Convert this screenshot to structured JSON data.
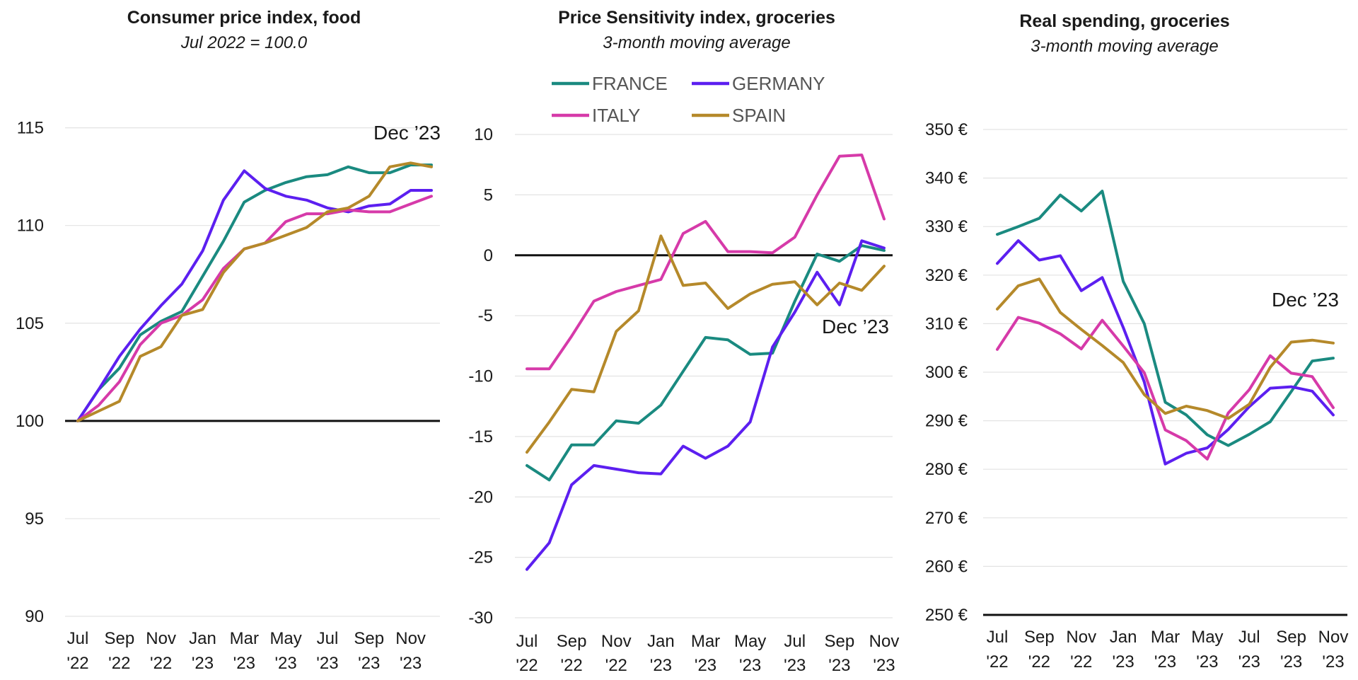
{
  "chart_data": [
    {
      "type": "line",
      "title": "Consumer price index, food",
      "subtitle": "Jul 2022 = 100.0",
      "annotation": "Dec ’23",
      "x_month_labels": [
        "Jul",
        "Sep",
        "Nov",
        "Jan",
        "Mar",
        "May",
        "Jul",
        "Sep",
        "Nov"
      ],
      "x_year_labels": [
        "'22",
        "'22",
        "'22",
        "'23",
        "'23",
        "'23",
        "'23",
        "'23",
        "'23"
      ],
      "y_tick_labels": [
        "90",
        "95",
        "100",
        "105",
        "110",
        "115"
      ],
      "y_ticks": [
        90,
        95,
        100,
        105,
        110,
        115
      ],
      "ylim": [
        90,
        116
      ],
      "baseline": 100,
      "grid": true,
      "series": [
        {
          "name": "FRANCE",
          "color": "#1a8a80",
          "values": [
            100,
            101.6,
            102.7,
            104.4,
            105.1,
            105.6,
            107.4,
            109.2,
            111.2,
            111.8,
            112.2,
            112.5,
            112.6,
            113.0,
            112.7,
            112.7,
            113.1,
            113.1
          ]
        },
        {
          "name": "GERMANY",
          "color": "#5c1ff0",
          "values": [
            100,
            101.6,
            103.3,
            104.7,
            105.9,
            107.0,
            108.7,
            111.3,
            112.8,
            111.9,
            111.5,
            111.3,
            110.9,
            110.7,
            111.0,
            111.1,
            111.8,
            111.8
          ]
        },
        {
          "name": "ITALY",
          "color": "#d63aa9",
          "values": [
            100,
            100.8,
            102.0,
            103.9,
            105.0,
            105.4,
            106.2,
            107.8,
            108.8,
            109.1,
            110.2,
            110.6,
            110.6,
            110.8,
            110.7,
            110.7,
            111.1,
            111.5
          ]
        },
        {
          "name": "SPAIN",
          "color": "#b5892a",
          "values": [
            100,
            100.5,
            101.0,
            103.3,
            103.8,
            105.4,
            105.7,
            107.6,
            108.8,
            109.1,
            109.5,
            109.9,
            110.7,
            110.9,
            111.5,
            113.0,
            113.2,
            113.0
          ]
        }
      ]
    },
    {
      "type": "line",
      "title": "Price Sensitivity index, groceries",
      "subtitle": "3-month moving average",
      "annotation": "Dec ’23",
      "legend": "top",
      "x_month_labels": [
        "Jul",
        "Sep",
        "Nov",
        "Jan",
        "Mar",
        "May",
        "Jul",
        "Sep",
        "Nov"
      ],
      "x_year_labels": [
        "'22",
        "'22",
        "'22",
        "'23",
        "'23",
        "'23",
        "'23",
        "'23",
        "'23"
      ],
      "y_tick_labels": [
        "-30",
        "-25",
        "-20",
        "-15",
        "-10",
        "-5",
        "0",
        "5",
        "10"
      ],
      "y_ticks": [
        -30,
        -25,
        -20,
        -15,
        -10,
        -5,
        0,
        5,
        10
      ],
      "ylim": [
        -30,
        10
      ],
      "baseline": 0,
      "grid": true,
      "series": [
        {
          "name": "FRANCE",
          "color": "#1a8a80",
          "values": [
            -17.4,
            -18.6,
            -15.7,
            -15.7,
            -13.7,
            -13.9,
            -12.4,
            -9.6,
            -6.8,
            -7.0,
            -8.2,
            -8.1,
            -3.8,
            0.1,
            -0.5,
            0.8,
            0.4
          ]
        },
        {
          "name": "GERMANY",
          "color": "#5c1ff0",
          "values": [
            -26.0,
            -23.8,
            -19.0,
            -17.4,
            -17.7,
            -18.0,
            -18.1,
            -15.8,
            -16.8,
            -15.8,
            -13.8,
            -7.6,
            -4.7,
            -1.4,
            -4.1,
            1.2,
            0.6
          ]
        },
        {
          "name": "ITALY",
          "color": "#d63aa9",
          "values": [
            -9.4,
            -9.4,
            -6.7,
            -3.8,
            -3.0,
            -2.5,
            -2.0,
            1.8,
            2.8,
            0.3,
            0.3,
            0.2,
            1.5,
            5.0,
            8.2,
            8.3,
            3.0
          ]
        },
        {
          "name": "SPAIN",
          "color": "#b5892a",
          "values": [
            -16.3,
            -13.8,
            -11.1,
            -11.3,
            -6.3,
            -4.6,
            1.6,
            -2.5,
            -2.3,
            -4.4,
            -3.2,
            -2.4,
            -2.2,
            -4.1,
            -2.3,
            -2.9,
            -0.9
          ]
        }
      ]
    },
    {
      "type": "line",
      "title": "Real spending, groceries",
      "subtitle": "3-month moving average",
      "annotation": "Dec ’23",
      "x_month_labels": [
        "Jul",
        "Sep",
        "Nov",
        "Jan",
        "Mar",
        "May",
        "Jul",
        "Sep",
        "Nov"
      ],
      "x_year_labels": [
        "'22",
        "'22",
        "'22",
        "'23",
        "'23",
        "'23",
        "'23",
        "'23",
        "'23"
      ],
      "y_tick_labels": [
        "250 €",
        "260 €",
        "270 €",
        "280 €",
        "290 €",
        "300 €",
        "310 €",
        "320 €",
        "330 €",
        "340 €",
        "350 €"
      ],
      "y_ticks": [
        250,
        260,
        270,
        280,
        290,
        300,
        310,
        320,
        330,
        340,
        350
      ],
      "ylim": [
        250,
        350
      ],
      "baseline": 250,
      "grid": true,
      "series": [
        {
          "name": "FRANCE",
          "color": "#1a8a80",
          "values": [
            328.4,
            330.0,
            331.7,
            336.5,
            333.2,
            337.3,
            318.7,
            310.0,
            293.8,
            291.2,
            287.1,
            284.9,
            287.2,
            289.8,
            296.0,
            302.3,
            302.9
          ]
        },
        {
          "name": "GERMANY",
          "color": "#5c1ff0",
          "values": [
            322.4,
            327.1,
            323.1,
            324.0,
            316.8,
            319.5,
            309.2,
            298.0,
            281.1,
            283.3,
            284.4,
            288.2,
            292.9,
            296.7,
            297.0,
            296.1,
            291.2
          ]
        },
        {
          "name": "ITALY",
          "color": "#d63aa9",
          "values": [
            304.7,
            311.3,
            310.1,
            307.9,
            304.8,
            310.7,
            305.4,
            299.9,
            288.1,
            285.9,
            282.1,
            291.6,
            296.4,
            303.4,
            299.8,
            299.1,
            292.7
          ]
        },
        {
          "name": "SPAIN",
          "color": "#b5892a",
          "values": [
            313.0,
            317.8,
            319.2,
            312.3,
            308.8,
            305.5,
            302.0,
            295.4,
            291.5,
            293.0,
            292.1,
            290.5,
            293.4,
            301.0,
            306.2,
            306.6,
            306.0
          ]
        }
      ]
    }
  ]
}
